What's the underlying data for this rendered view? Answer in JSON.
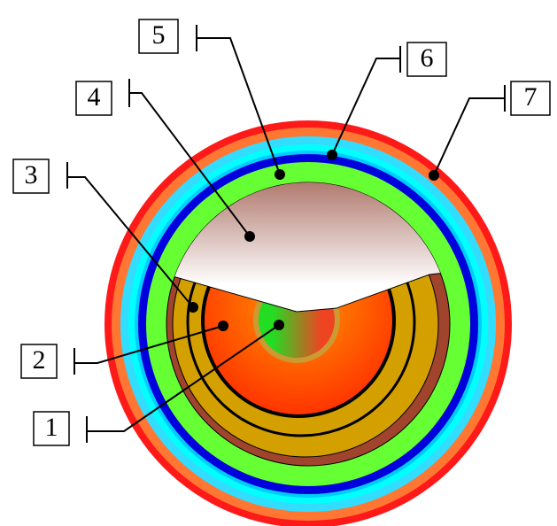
{
  "labels": [
    "1",
    "2",
    "3",
    "4",
    "5",
    "6",
    "7"
  ]
}
